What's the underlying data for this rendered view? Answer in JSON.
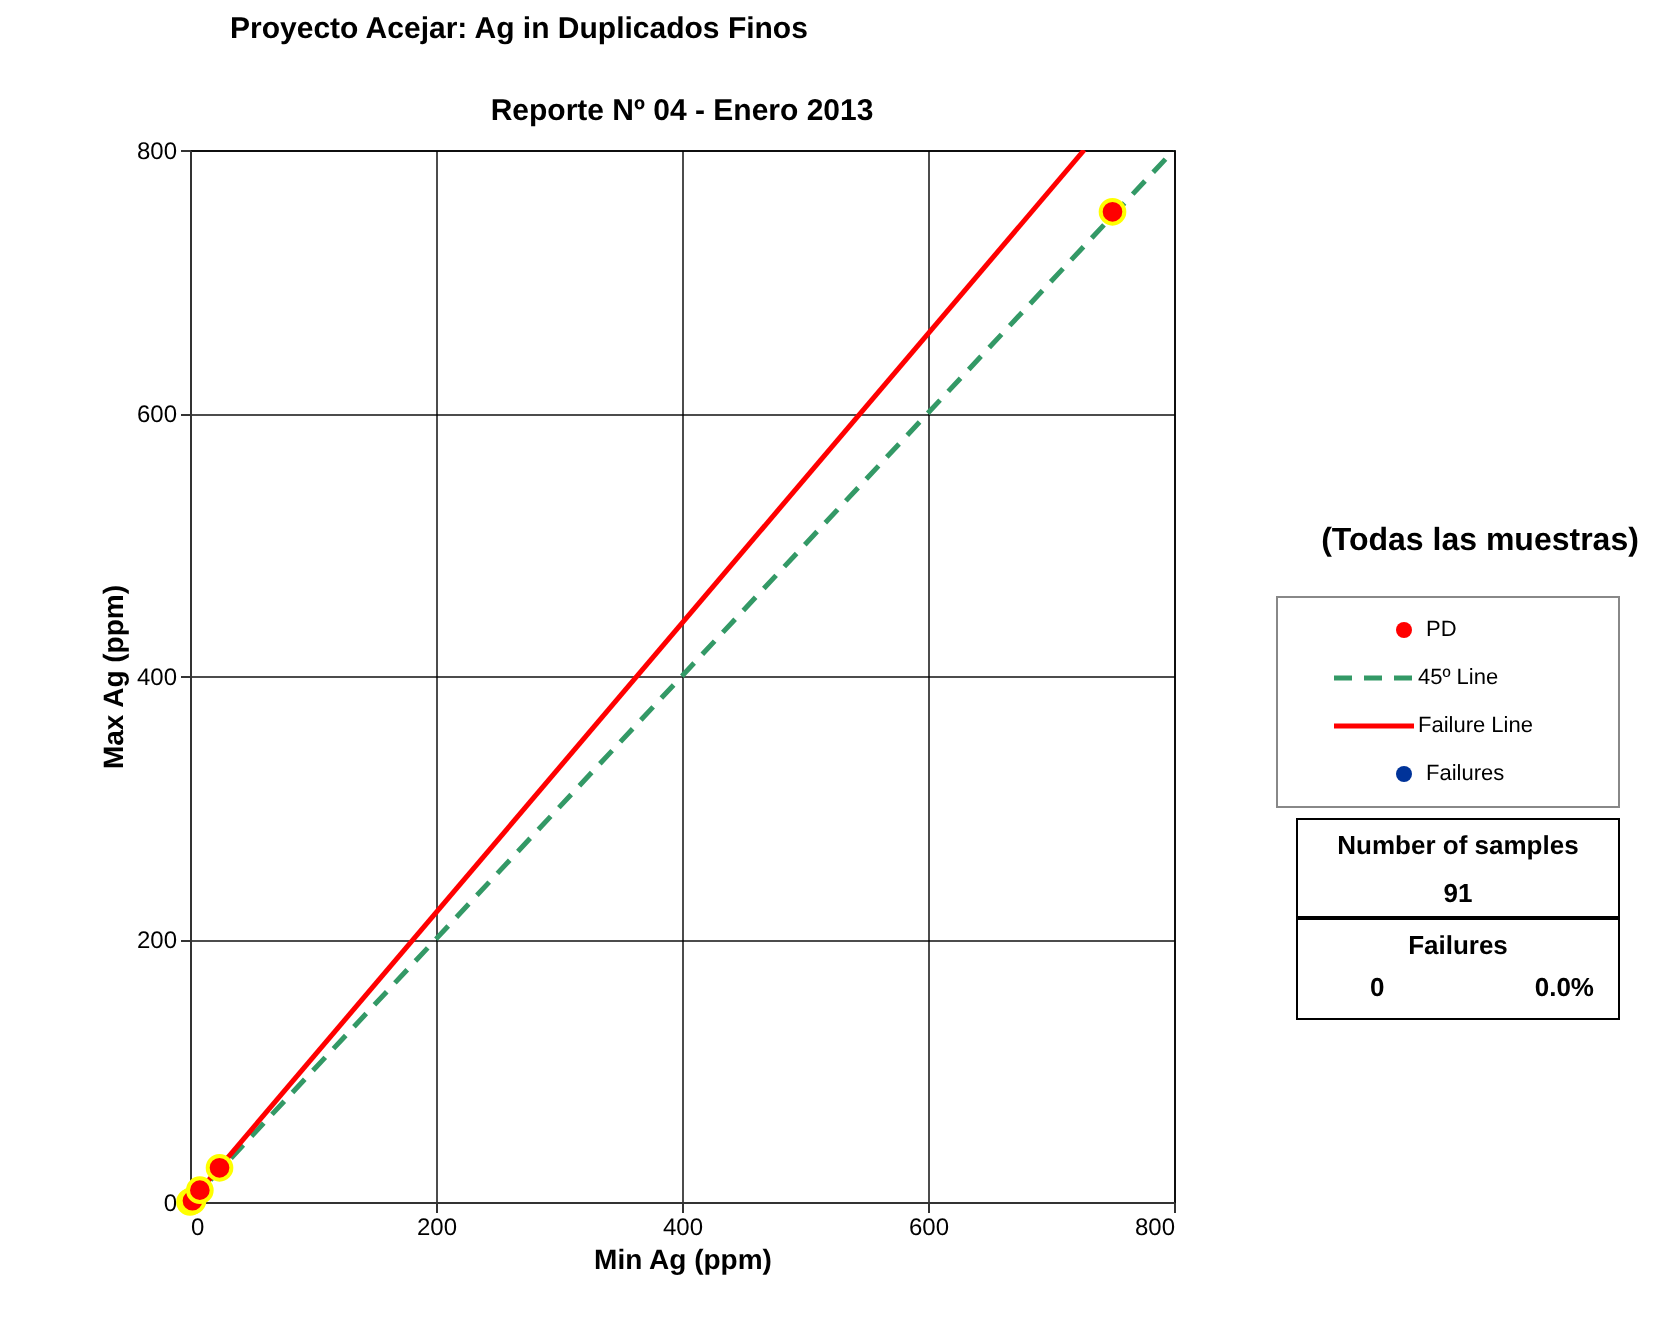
{
  "chart_data": {
    "type": "scatter",
    "title": "Proyecto Acejar: Ag in Duplicados Finos",
    "subtitle": "Reporte Nº 04 - Enero 2013",
    "xlabel": "Min Ag (ppm)",
    "ylabel": "Max Ag (ppm)",
    "legend_title": "(Todas las muestras)",
    "xlim": [
      0,
      800
    ],
    "ylim": [
      0,
      800
    ],
    "xticks": [
      0,
      200,
      400,
      600,
      800
    ],
    "yticks": [
      0,
      200,
      400,
      600,
      800
    ],
    "grid": true,
    "legend": "right",
    "series": [
      {
        "name": "PD",
        "marker": "circle",
        "color": "#ff0000",
        "x": [
          0,
          2,
          8,
          24,
          750
        ],
        "values": [
          0,
          1,
          9,
          26,
          753
        ]
      },
      {
        "name": "45º Line",
        "type": "line",
        "marker": "none",
        "line_style": "dashed",
        "color": "#339966",
        "x": [
          0,
          800
        ],
        "values": [
          0,
          800
        ]
      },
      {
        "name": "Failure Line",
        "type": "line",
        "marker": "none",
        "line_style": "solid",
        "color": "#ff0000",
        "x": [
          10,
          727
        ],
        "values": [
          11,
          800
        ]
      },
      {
        "name": "Failures",
        "marker": "circle",
        "color": "#003399"
      }
    ],
    "annotations": [
      "Number of samples",
      "91",
      "Failures",
      "0",
      "0.0%"
    ]
  }
}
